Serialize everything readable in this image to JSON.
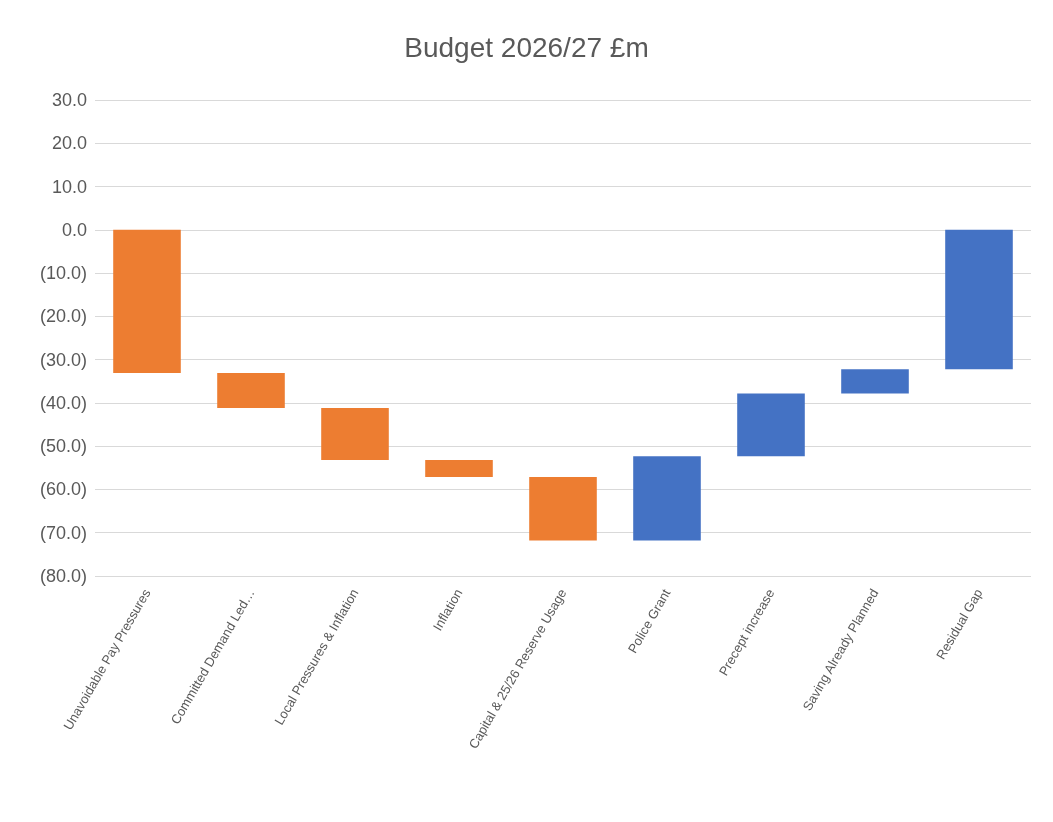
{
  "chart_data": {
    "type": "bar",
    "title": "Budget 2026/27 £m",
    "categories": [
      "Unavoidable Pay Pressures",
      "Committed Demand Led…",
      "Local Pressures & Inflation",
      "Inflation",
      "Capital & 25/26 Reserve Usage",
      "Police Grant",
      "Precept increase",
      "Saving Already Planned",
      "Residual Gap"
    ],
    "values": [
      -33.1,
      -8.1,
      -12.0,
      -3.9,
      -14.7,
      19.5,
      14.5,
      5.6,
      -32.2
    ],
    "base": [
      0,
      -33.1,
      -41.2,
      -53.2,
      -57.1,
      -71.8,
      -52.3,
      -37.8,
      0
    ],
    "colors": [
      "#ed7d31",
      "#ed7d31",
      "#ed7d31",
      "#ed7d31",
      "#ed7d31",
      "#4472c4",
      "#4472c4",
      "#4472c4",
      "#4472c4"
    ],
    "ylim": [
      -80,
      30
    ],
    "yticks": [
      {
        "value": 30,
        "label": "30.0"
      },
      {
        "value": 20,
        "label": "20.0"
      },
      {
        "value": 10,
        "label": "10.0"
      },
      {
        "value": 0,
        "label": "0.0"
      },
      {
        "value": -10,
        "label": "(10.0)"
      },
      {
        "value": -20,
        "label": "(20.0)"
      },
      {
        "value": -30,
        "label": "(30.0)"
      },
      {
        "value": -40,
        "label": "(40.0)"
      },
      {
        "value": -50,
        "label": "(50.0)"
      },
      {
        "value": -60,
        "label": "(60.0)"
      },
      {
        "value": -70,
        "label": "(70.0)"
      },
      {
        "value": -80,
        "label": "(80.0)"
      }
    ],
    "grid": "y"
  }
}
